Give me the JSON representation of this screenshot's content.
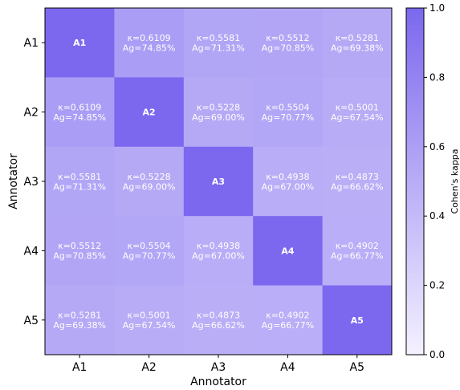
{
  "chart_data": {
    "type": "heatmap",
    "xlabel": "Annotator",
    "ylabel": "Annotator",
    "x_categories": [
      "A1",
      "A2",
      "A3",
      "A4",
      "A5"
    ],
    "y_categories": [
      "A1",
      "A2",
      "A3",
      "A4",
      "A5"
    ],
    "kappa": [
      [
        1.0,
        0.6109,
        0.5581,
        0.5512,
        0.5281
      ],
      [
        0.6109,
        1.0,
        0.5228,
        0.5504,
        0.5001
      ],
      [
        0.5581,
        0.5228,
        1.0,
        0.4938,
        0.4873
      ],
      [
        0.5512,
        0.5504,
        0.4938,
        1.0,
        0.4902
      ],
      [
        0.5281,
        0.5001,
        0.4873,
        0.4902,
        1.0
      ]
    ],
    "agreement_pct": [
      [
        null,
        74.85,
        71.31,
        70.85,
        69.38
      ],
      [
        74.85,
        null,
        69.0,
        70.77,
        67.54
      ],
      [
        71.31,
        69.0,
        null,
        67.0,
        66.62
      ],
      [
        70.85,
        70.77,
        67.0,
        null,
        66.77
      ],
      [
        69.38,
        67.54,
        66.62,
        66.77,
        null
      ]
    ],
    "cell_text": [
      [
        [
          "A1"
        ],
        [
          "κ=0.6109",
          "Ag=74.85%"
        ],
        [
          "κ=0.5581",
          "Ag=71.31%"
        ],
        [
          "κ=0.5512",
          "Ag=70.85%"
        ],
        [
          "κ=0.5281",
          "Ag=69.38%"
        ]
      ],
      [
        [
          "κ=0.6109",
          "Ag=74.85%"
        ],
        [
          "A2"
        ],
        [
          "κ=0.5228",
          "Ag=69.00%"
        ],
        [
          "κ=0.5504",
          "Ag=70.77%"
        ],
        [
          "κ=0.5001",
          "Ag=67.54%"
        ]
      ],
      [
        [
          "κ=0.5581",
          "Ag=71.31%"
        ],
        [
          "κ=0.5228",
          "Ag=69.00%"
        ],
        [
          "A3"
        ],
        [
          "κ=0.4938",
          "Ag=67.00%"
        ],
        [
          "κ=0.4873",
          "Ag=66.62%"
        ]
      ],
      [
        [
          "κ=0.5512",
          "Ag=70.85%"
        ],
        [
          "κ=0.5504",
          "Ag=70.77%"
        ],
        [
          "κ=0.4938",
          "Ag=67.00%"
        ],
        [
          "A4"
        ],
        [
          "κ=0.4902",
          "Ag=66.77%"
        ]
      ],
      [
        [
          "κ=0.5281",
          "Ag=69.38%"
        ],
        [
          "κ=0.5001",
          "Ag=67.54%"
        ],
        [
          "κ=0.4873",
          "Ag=66.62%"
        ],
        [
          "κ=0.4902",
          "Ag=66.77%"
        ],
        [
          "A5"
        ]
      ]
    ],
    "colorbar": {
      "label": "Cohen's kappa",
      "range": [
        0.0,
        1.0
      ],
      "ticks": [
        "0.0",
        "0.2",
        "0.4",
        "0.6",
        "0.8",
        "1.0"
      ],
      "color_low": "#f5f1ff",
      "color_high": "#7b68ee"
    },
    "grid": false
  }
}
